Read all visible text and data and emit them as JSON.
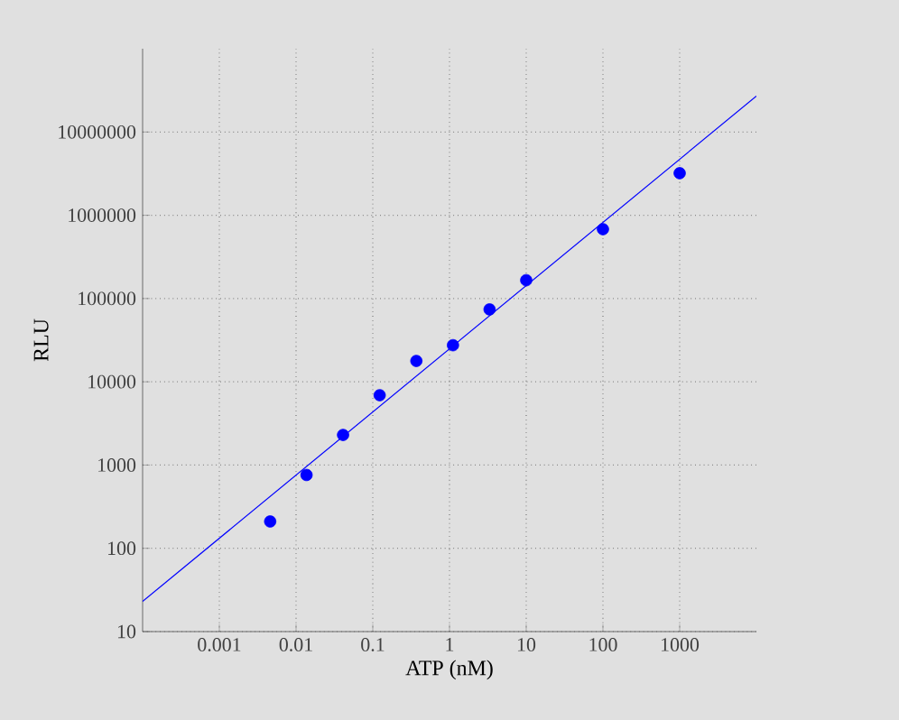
{
  "chart_data": {
    "type": "scatter",
    "xlabel": "ATP (nM)",
    "ylabel": "RLU",
    "log": "xy",
    "grid": true,
    "xlim": [
      0.0001,
      10000
    ],
    "ylim": [
      10,
      100000000
    ],
    "xticks": [
      0.001,
      0.01,
      0.1,
      1,
      10,
      100,
      1000
    ],
    "yticks": [
      10,
      100,
      1000,
      10000,
      100000,
      1000000,
      10000000
    ],
    "series": [
      {
        "marker": "circle",
        "color": "#0000ff",
        "x": [
          0.0046,
          0.0137,
          0.041,
          0.123,
          0.37,
          1.11,
          3.33,
          10,
          100,
          1000
        ],
        "values": [
          210,
          760,
          2300,
          6900,
          17800,
          27500,
          74000,
          166000,
          680000,
          3200000
        ]
      },
      {
        "type": "line",
        "marker": "none",
        "color": "#0000ff",
        "x": [
          0.0001,
          10000
        ],
        "values": [
          23,
          27000000
        ]
      }
    ]
  }
}
